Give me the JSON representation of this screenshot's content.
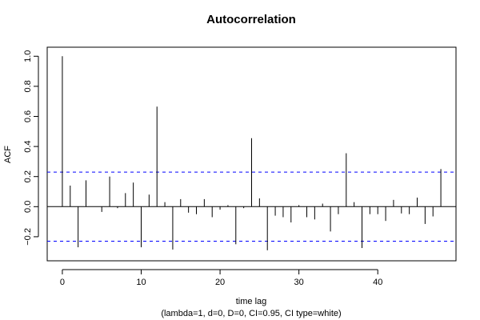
{
  "chart_data": {
    "type": "bar",
    "title": "Autocorrelation",
    "xlabel": "time lag",
    "subtitle": "(lambda=1, d=0, D=0, CI=0.95, CI type=white)",
    "ylabel": "ACF",
    "xlim": [
      -1.92,
      49.92
    ],
    "ylim": [
      -0.36,
      1.06
    ],
    "x_ticks": [
      0,
      10,
      20,
      30,
      40
    ],
    "y_ticks": [
      -0.2,
      0.0,
      0.2,
      0.4,
      0.6,
      0.8,
      1.0
    ],
    "y_tick_labels": [
      "−0.2",
      "0.0",
      "0.2",
      "0.4",
      "0.6",
      "0.8",
      "1.0"
    ],
    "confidence_bound": 0.23,
    "confidence_line_color": "#0000ff",
    "zero_line_color": "#000000",
    "bar_color": "#000000",
    "grid": false,
    "series": [
      {
        "lags": [
          0,
          1,
          2,
          3,
          4,
          5,
          6,
          7,
          8,
          9,
          10,
          11,
          12,
          13,
          14,
          15,
          16,
          17,
          18,
          19,
          20,
          21,
          22,
          23,
          24,
          25,
          26,
          27,
          28,
          29,
          30,
          31,
          32,
          33,
          34,
          35,
          36,
          37,
          38,
          39,
          40,
          41,
          42,
          43,
          44,
          45,
          46,
          47,
          48
        ],
        "values": [
          1.0,
          0.14,
          -0.27,
          0.175,
          0.0,
          -0.035,
          0.2,
          -0.01,
          0.09,
          0.16,
          -0.27,
          0.08,
          0.665,
          0.03,
          -0.285,
          0.05,
          -0.04,
          -0.05,
          0.05,
          -0.07,
          -0.02,
          0.01,
          -0.25,
          -0.01,
          0.455,
          0.055,
          -0.29,
          -0.06,
          -0.07,
          -0.105,
          0.01,
          -0.07,
          -0.085,
          0.02,
          -0.165,
          -0.05,
          0.355,
          0.03,
          -0.275,
          -0.05,
          -0.05,
          -0.095,
          0.045,
          -0.045,
          -0.05,
          0.06,
          -0.115,
          -0.065,
          0.25
        ]
      }
    ]
  }
}
